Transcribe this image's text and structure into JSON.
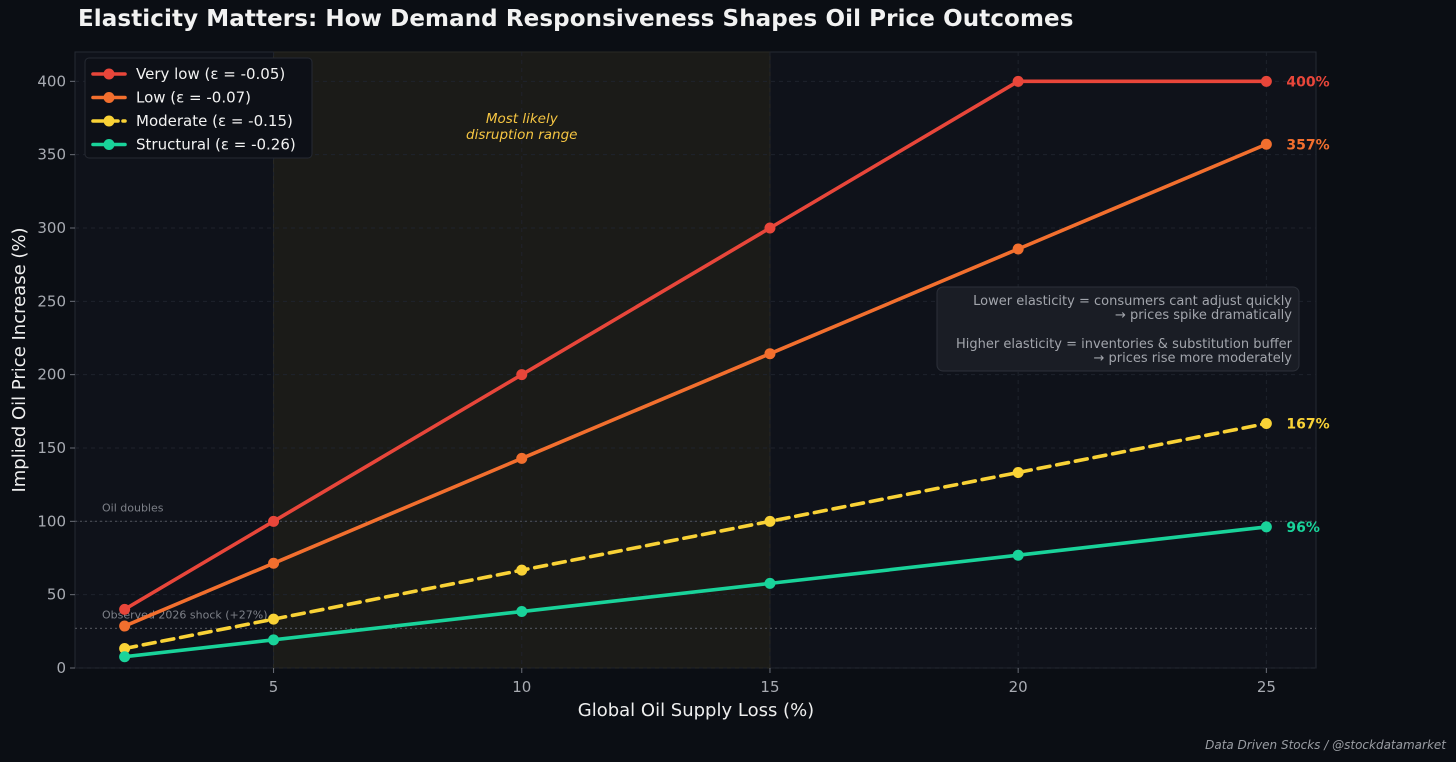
{
  "chart_data": {
    "type": "line",
    "title": "Elasticity Matters: How Demand Responsiveness Shapes Oil Price Outcomes",
    "xlabel": "Global Oil Supply Loss (%)",
    "ylabel": "Implied Oil Price Increase (%)",
    "x": [
      2,
      5,
      10,
      15,
      20,
      25
    ],
    "xlim": [
      1,
      26
    ],
    "ylim": [
      0,
      420
    ],
    "xticks": [
      5,
      10,
      15,
      20,
      25
    ],
    "yticks": [
      0,
      50,
      100,
      150,
      200,
      250,
      300,
      350,
      400
    ],
    "grid": true,
    "legend_position": "top-left",
    "series": [
      {
        "name": "Very low (ε = -0.05)",
        "values": [
          40,
          100,
          200,
          300,
          400,
          400
        ],
        "color": "#e8463a",
        "dashed": false,
        "end_label": "400%"
      },
      {
        "name": "Low (ε = -0.07)",
        "values": [
          28.6,
          71.4,
          142.9,
          214.3,
          285.7,
          357.1
        ],
        "color": "#f26f2e",
        "dashed": false,
        "end_label": "357%"
      },
      {
        "name": "Moderate (ε = -0.15)",
        "values": [
          13.3,
          33.3,
          66.7,
          100,
          133.3,
          166.7
        ],
        "color": "#f9d236",
        "dashed": true,
        "end_label": "167%"
      },
      {
        "name": "Structural (ε = -0.26)",
        "values": [
          7.7,
          19.2,
          38.5,
          57.7,
          76.9,
          96.2
        ],
        "color": "#19d39a",
        "dashed": false,
        "end_label": "96%"
      }
    ],
    "shaded_range": {
      "x_start": 5,
      "x_end": 15,
      "label_line1": "Most likely",
      "label_line2": "disruption range"
    },
    "reference_lines": [
      {
        "y": 100,
        "label": "Oil doubles"
      },
      {
        "y": 27,
        "label": "Observed 2026 shock (+27%)"
      }
    ],
    "annotation": {
      "line1": "Lower elasticity = consumers cant adjust quickly",
      "line2": "→ prices spike dramatically",
      "line3": "Higher elasticity = inventories & substitution buffer",
      "line4": "→ prices rise more moderately"
    }
  },
  "credit": "Data Driven Stocks / @stockdatamarket"
}
